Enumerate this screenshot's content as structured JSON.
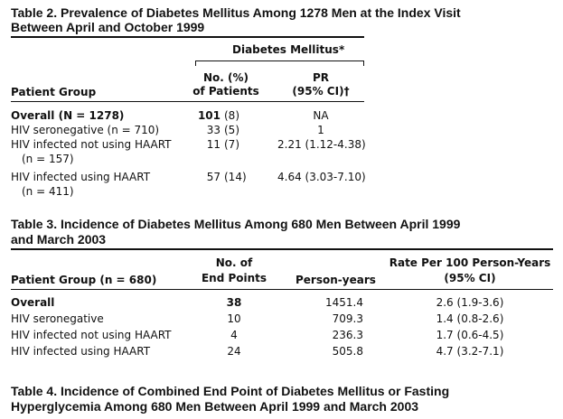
{
  "table2": {
    "caption_line1": "Table 2. Prevalence of Diabetes Mellitus Among 1278 Men at the Index Visit",
    "caption_line2": "Between April and October 1999",
    "spanner": "Diabetes Mellitus*",
    "col_group": "Patient Group",
    "col_no_1": "No. (%)",
    "col_no_2": "of Patients",
    "col_pr_1": "PR",
    "col_pr_2": "(95% CI)†",
    "rows": [
      {
        "group": "Overall (N = 1278)",
        "group2": "",
        "no": "101",
        "pct": "(8)",
        "pr": "NA"
      },
      {
        "group": "HIV seronegative (n = 710)",
        "group2": "",
        "no": "33",
        "pct": "(5)",
        "pr": "1"
      },
      {
        "group": "HIV infected not using HAART",
        "group2": "(n = 157)",
        "no": "11",
        "pct": "(7)",
        "pr": "2.21 (1.12-4.38)"
      },
      {
        "group": "HIV infected using HAART",
        "group2": "(n = 411)",
        "no": "57",
        "pct": "(14)",
        "pr": "4.64 (3.03-7.10)"
      }
    ]
  },
  "table3": {
    "caption_line1": "Table 3. Incidence of Diabetes Mellitus Among 680 Men Between April 1999",
    "caption_line2": "and March 2003",
    "col_group": "Patient Group (n = 680)",
    "col_end_1": "No. of",
    "col_end_2": "End Points",
    "col_py": "Person-years",
    "col_rate_1": "Rate Per 100 Person-Years",
    "col_rate_2": "(95% CI)",
    "rows": [
      {
        "group": "Overall",
        "end": "38",
        "py": "1451.4",
        "rate": "2.6 (1.9-3.6)"
      },
      {
        "group": "HIV seronegative",
        "end": "10",
        "py": "709.3",
        "rate": "1.4 (0.8-2.6)"
      },
      {
        "group": "HIV infected not using HAART",
        "end": "4",
        "py": "236.3",
        "rate": "1.7 (0.6-4.5)"
      },
      {
        "group": "HIV infected using HAART",
        "end": "24",
        "py": "505.8",
        "rate": "4.7 (3.2-7.1)"
      }
    ]
  },
  "table4": {
    "caption_line1": "Table 4. Incidence of Combined End Point of Diabetes Mellitus or Fasting",
    "caption_line2": "Hyperglycemia Among 680 Men Between April 1999 and March 2003"
  }
}
